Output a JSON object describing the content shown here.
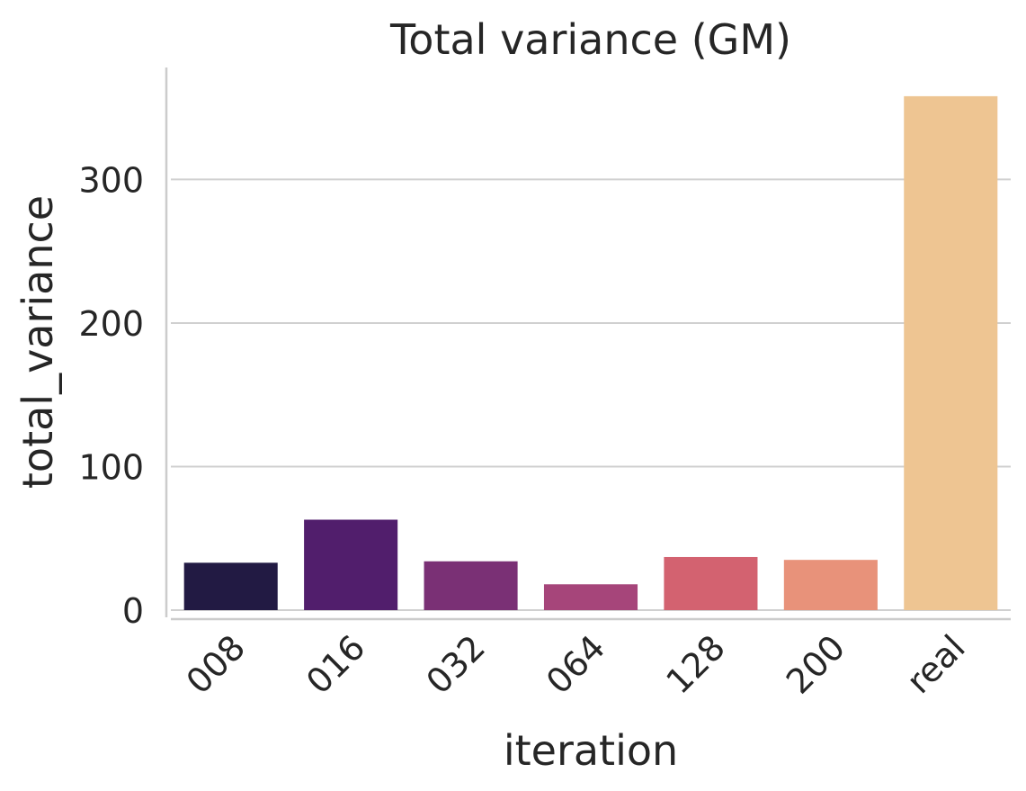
{
  "chart_data": {
    "type": "bar",
    "title": "Total variance (GM)",
    "xlabel": "iteration",
    "ylabel": "total_variance",
    "categories": [
      "008",
      "016",
      "032",
      "064",
      "128",
      "200",
      "real"
    ],
    "values": [
      33,
      63,
      34,
      18,
      37,
      35,
      358
    ],
    "colors": [
      "#221a43",
      "#511e6c",
      "#7a3075",
      "#a6457a",
      "#d36270",
      "#e8927a",
      "#eec592"
    ],
    "yticks": [
      0,
      100,
      200,
      300
    ],
    "ylim": [
      0,
      378
    ],
    "grid": "horizontal",
    "legend": "none"
  }
}
